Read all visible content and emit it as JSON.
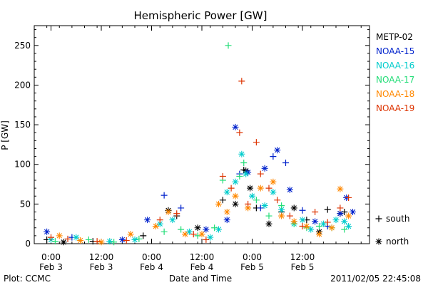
{
  "chart_data": {
    "type": "scatter",
    "title": "Hemispheric Power [GW]",
    "ylabel": "P [GW]",
    "xlabel": "Date and Time",
    "ylim": [
      0,
      275
    ],
    "yticks": [
      0,
      50,
      100,
      150,
      200,
      250
    ],
    "x_unit": "hours since 2011-02-03 00:00 UT",
    "xlim": [
      -4,
      76
    ],
    "xticks": [
      {
        "x": 0,
        "time": "0:00",
        "date": "Feb 3"
      },
      {
        "x": 12,
        "time": "12:00",
        "date": "Feb 3"
      },
      {
        "x": 24,
        "time": "0:00",
        "date": "Feb 4"
      },
      {
        "x": 36,
        "time": "12:00",
        "date": "Feb 4"
      },
      {
        "x": 48,
        "time": "0:00",
        "date": "Feb 5"
      },
      {
        "x": 60,
        "time": "12:00",
        "date": "Feb 5"
      }
    ],
    "footer_left": "Plot: CCMC",
    "footer_right": "2011/02/05 22:45:08",
    "marker_legend": [
      {
        "symbol": "+",
        "label": "south"
      },
      {
        "symbol": "*",
        "label": "north"
      }
    ],
    "series": [
      {
        "name": "METP-02",
        "color": "#000000",
        "points": [
          [
            -1,
            5,
            "+"
          ],
          [
            3,
            2,
            "*"
          ],
          [
            10,
            3,
            "+"
          ],
          [
            22,
            10,
            "+"
          ],
          [
            28,
            42,
            "*"
          ],
          [
            30,
            35,
            "+"
          ],
          [
            35,
            20,
            "*"
          ],
          [
            41,
            55,
            "+"
          ],
          [
            44,
            50,
            "*"
          ],
          [
            46,
            93,
            "+"
          ],
          [
            46.5,
            92,
            "*"
          ],
          [
            47.5,
            70,
            "*"
          ],
          [
            49,
            45,
            "+"
          ],
          [
            52,
            25,
            "*"
          ],
          [
            55,
            40,
            "+"
          ],
          [
            58,
            45,
            "*"
          ],
          [
            61,
            30,
            "+"
          ],
          [
            64,
            15,
            "*"
          ],
          [
            66,
            43,
            "+"
          ],
          [
            69,
            38,
            "*"
          ],
          [
            70,
            40,
            "+"
          ]
        ]
      },
      {
        "name": "NOAA-15",
        "color": "#0022cc",
        "points": [
          [
            -1,
            15,
            "*"
          ],
          [
            5,
            8,
            "+"
          ],
          [
            17,
            5,
            "*"
          ],
          [
            23,
            30,
            "*"
          ],
          [
            27,
            61,
            "+"
          ],
          [
            31,
            45,
            "+"
          ],
          [
            37,
            18,
            "*"
          ],
          [
            42,
            30,
            "*"
          ],
          [
            44,
            147,
            "*"
          ],
          [
            45,
            88,
            "+"
          ],
          [
            47,
            90,
            "*"
          ],
          [
            50,
            45,
            "+"
          ],
          [
            51,
            95,
            "*"
          ],
          [
            53,
            110,
            "+"
          ],
          [
            54,
            118,
            "*"
          ],
          [
            56,
            102,
            "+"
          ],
          [
            57,
            68,
            "*"
          ],
          [
            60,
            42,
            "+"
          ],
          [
            63,
            28,
            "*"
          ],
          [
            66,
            22,
            "+"
          ],
          [
            69,
            38,
            "*"
          ],
          [
            70.5,
            58,
            "*"
          ],
          [
            72,
            40,
            "*"
          ]
        ]
      },
      {
        "name": "NOAA-16",
        "color": "#00cccc",
        "points": [
          [
            0,
            5,
            "*"
          ],
          [
            6,
            8,
            "*"
          ],
          [
            14,
            3,
            "*"
          ],
          [
            20,
            5,
            "*"
          ],
          [
            26,
            25,
            "*"
          ],
          [
            29,
            30,
            "*"
          ],
          [
            33,
            15,
            "*"
          ],
          [
            38,
            8,
            "*"
          ],
          [
            40,
            18,
            "*"
          ],
          [
            42,
            65,
            "*"
          ],
          [
            44,
            78,
            "*"
          ],
          [
            45.5,
            113,
            "*"
          ],
          [
            46.5,
            88,
            "*"
          ],
          [
            48,
            60,
            "*"
          ],
          [
            51,
            48,
            "*"
          ],
          [
            53,
            65,
            "*"
          ],
          [
            55,
            43,
            "*"
          ],
          [
            58,
            25,
            "*"
          ],
          [
            60,
            30,
            "*"
          ],
          [
            62,
            18,
            "*"
          ],
          [
            65,
            25,
            "*"
          ],
          [
            68,
            30,
            "*"
          ],
          [
            70,
            28,
            "*"
          ],
          [
            71,
            22,
            "*"
          ]
        ]
      },
      {
        "name": "NOAA-17",
        "color": "#22dd77",
        "points": [
          [
            1,
            3,
            "+"
          ],
          [
            9,
            5,
            "+"
          ],
          [
            15,
            2,
            "+"
          ],
          [
            21,
            6,
            "+"
          ],
          [
            27,
            15,
            "+"
          ],
          [
            31,
            18,
            "+"
          ],
          [
            35,
            10,
            "+"
          ],
          [
            39,
            20,
            "+"
          ],
          [
            41,
            80,
            "+"
          ],
          [
            42.3,
            250,
            "+"
          ],
          [
            45,
            85,
            "+"
          ],
          [
            46,
            102,
            "+"
          ],
          [
            49,
            55,
            "+"
          ],
          [
            52,
            35,
            "+"
          ],
          [
            55,
            48,
            "+"
          ],
          [
            58,
            25,
            "+"
          ],
          [
            61,
            20,
            "+"
          ],
          [
            64,
            22,
            "+"
          ],
          [
            67,
            20,
            "+"
          ],
          [
            70,
            18,
            "+"
          ]
        ]
      },
      {
        "name": "NOAA-18",
        "color": "#ff8800",
        "points": [
          [
            2,
            10,
            "*"
          ],
          [
            7,
            4,
            "*"
          ],
          [
            12,
            2,
            "*"
          ],
          [
            19,
            12,
            "*"
          ],
          [
            25,
            22,
            "*"
          ],
          [
            28,
            40,
            "*"
          ],
          [
            32,
            12,
            "*"
          ],
          [
            36,
            12,
            "*"
          ],
          [
            40,
            50,
            "*"
          ],
          [
            42,
            40,
            "*"
          ],
          [
            44,
            60,
            "*"
          ],
          [
            47,
            45,
            "*"
          ],
          [
            50,
            70,
            "*"
          ],
          [
            53,
            78,
            "*"
          ],
          [
            55,
            35,
            "*"
          ],
          [
            58,
            28,
            "*"
          ],
          [
            61,
            22,
            "*"
          ],
          [
            64,
            12,
            "*"
          ],
          [
            67,
            20,
            "*"
          ],
          [
            69,
            69,
            "*"
          ],
          [
            71,
            35,
            "*"
          ]
        ]
      },
      {
        "name": "NOAA-19",
        "color": "#dd3300",
        "points": [
          [
            0,
            8,
            "+"
          ],
          [
            4,
            6,
            "+"
          ],
          [
            11,
            3,
            "+"
          ],
          [
            18,
            4,
            "+"
          ],
          [
            26,
            30,
            "+"
          ],
          [
            30,
            38,
            "+"
          ],
          [
            34,
            12,
            "+"
          ],
          [
            37,
            5,
            "+"
          ],
          [
            41,
            85,
            "+"
          ],
          [
            43,
            70,
            "+"
          ],
          [
            45,
            140,
            "+"
          ],
          [
            45.5,
            205,
            "+"
          ],
          [
            47,
            50,
            "+"
          ],
          [
            49,
            128,
            "+"
          ],
          [
            50,
            88,
            "+"
          ],
          [
            52,
            70,
            "+"
          ],
          [
            54,
            55,
            "+"
          ],
          [
            57,
            35,
            "+"
          ],
          [
            60,
            22,
            "+"
          ],
          [
            63,
            40,
            "+"
          ],
          [
            66,
            27,
            "+"
          ],
          [
            69,
            45,
            "+"
          ],
          [
            71,
            58,
            "+"
          ]
        ]
      }
    ]
  }
}
